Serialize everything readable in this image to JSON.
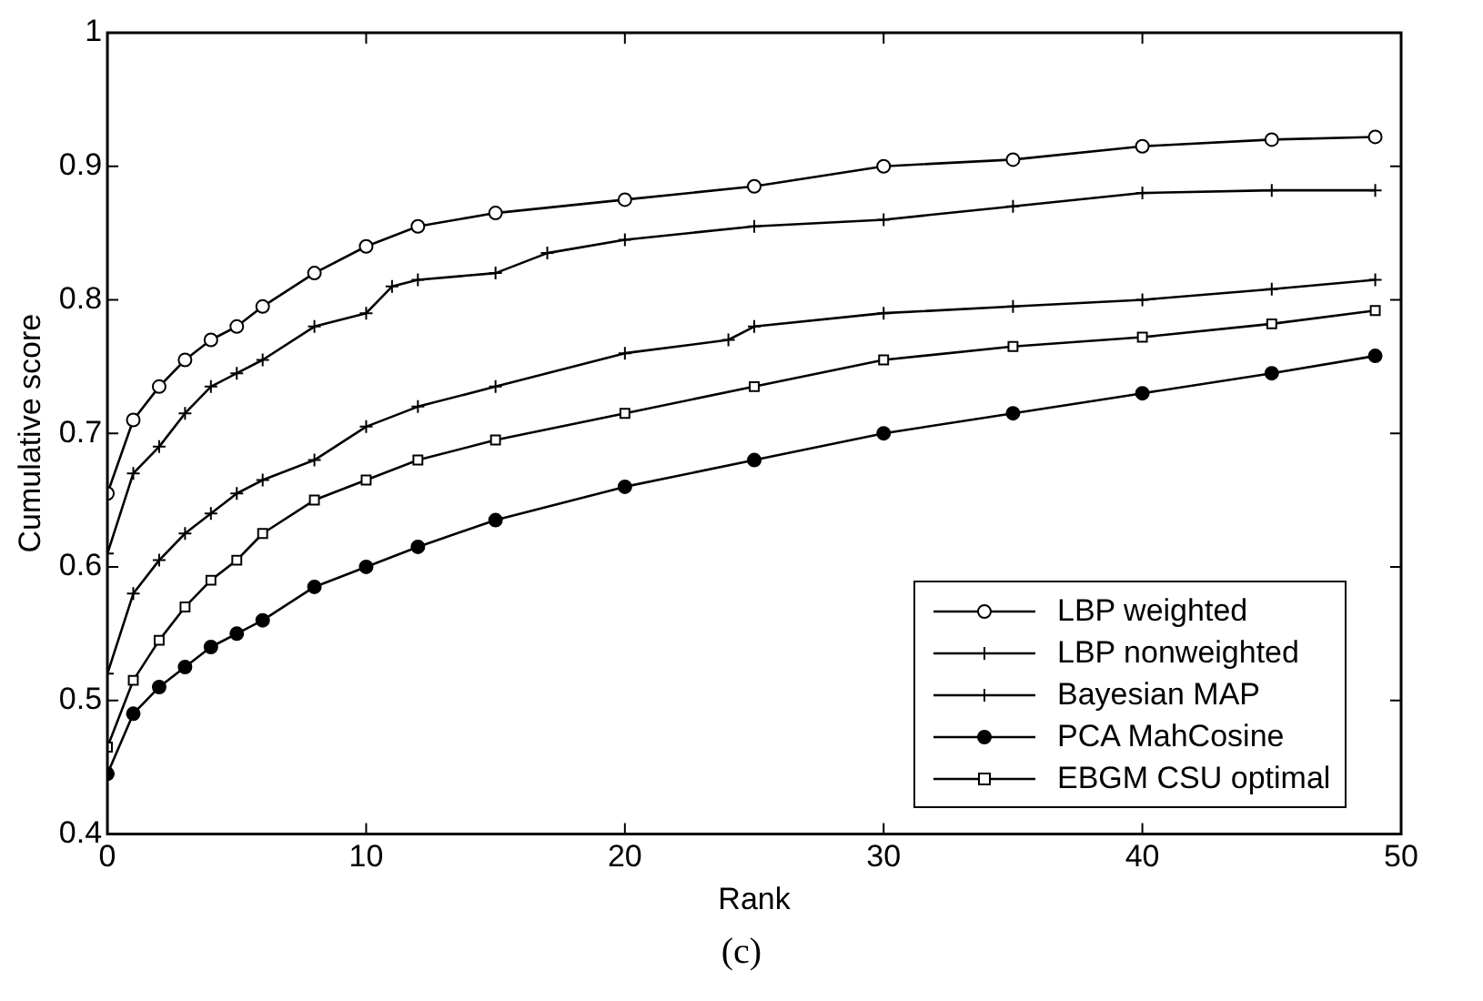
{
  "chart_data": {
    "type": "line",
    "xlabel": "Rank",
    "ylabel": "Cumulative score",
    "annotations": [
      "(c)"
    ],
    "xlim": [
      0,
      50
    ],
    "xticks": [
      0,
      10,
      20,
      30,
      40,
      50
    ],
    "ylim": [
      0.4,
      1
    ],
    "yticks": [
      0.4,
      0.5,
      0.6,
      0.7,
      0.8,
      0.9,
      1
    ],
    "grid": false,
    "legend": "bottom right",
    "line_style": "solid",
    "series": [
      {
        "name": "LBP weighted",
        "color": "#000000",
        "marker": "circle",
        "x": [
          0,
          1,
          2,
          3,
          4,
          5,
          6,
          8,
          10,
          12,
          15,
          20,
          25,
          30,
          35,
          40,
          45,
          49
        ],
        "values": [
          0.655,
          0.71,
          0.735,
          0.755,
          0.77,
          0.78,
          0.795,
          0.82,
          0.84,
          0.855,
          0.865,
          0.875,
          0.885,
          0.9,
          0.905,
          0.915,
          0.92,
          0.922
        ]
      },
      {
        "name": "LBP nonweighted",
        "color": "#000000",
        "marker": "cross",
        "x": [
          0,
          1,
          2,
          3,
          4,
          5,
          6,
          8,
          10,
          11,
          12,
          15,
          17,
          20,
          25,
          30,
          35,
          40,
          45,
          49
        ],
        "values": [
          0.61,
          0.67,
          0.69,
          0.715,
          0.735,
          0.745,
          0.755,
          0.78,
          0.79,
          0.81,
          0.815,
          0.82,
          0.835,
          0.845,
          0.855,
          0.86,
          0.87,
          0.88,
          0.882,
          0.882
        ]
      },
      {
        "name": "Bayesian MAP",
        "color": "#000000",
        "marker": "cross",
        "x": [
          0,
          1,
          2,
          3,
          4,
          5,
          6,
          8,
          10,
          12,
          15,
          20,
          24,
          25,
          30,
          35,
          40,
          45,
          49
        ],
        "values": [
          0.52,
          0.58,
          0.605,
          0.625,
          0.64,
          0.655,
          0.665,
          0.68,
          0.705,
          0.72,
          0.735,
          0.76,
          0.77,
          0.78,
          0.79,
          0.795,
          0.8,
          0.808,
          0.815
        ]
      },
      {
        "name": "PCA MahCosine",
        "color": "#000000",
        "marker": "circle",
        "x": [
          0,
          1,
          2,
          3,
          4,
          5,
          6,
          8,
          10,
          12,
          15,
          20,
          25,
          30,
          35,
          40,
          45,
          49
        ],
        "values": [
          0.445,
          0.49,
          0.51,
          0.525,
          0.54,
          0.55,
          0.56,
          0.585,
          0.6,
          0.615,
          0.635,
          0.66,
          0.68,
          0.7,
          0.715,
          0.73,
          0.745,
          0.758
        ]
      },
      {
        "name": "EBGM CSU optimal",
        "color": "#000000",
        "marker": "square",
        "x": [
          0,
          1,
          2,
          3,
          4,
          5,
          6,
          8,
          10,
          12,
          15,
          20,
          25,
          30,
          35,
          40,
          45,
          49
        ],
        "values": [
          0.465,
          0.515,
          0.545,
          0.57,
          0.59,
          0.605,
          0.625,
          0.65,
          0.665,
          0.68,
          0.695,
          0.715,
          0.735,
          0.755,
          0.765,
          0.772,
          0.782,
          0.792
        ]
      }
    ]
  }
}
